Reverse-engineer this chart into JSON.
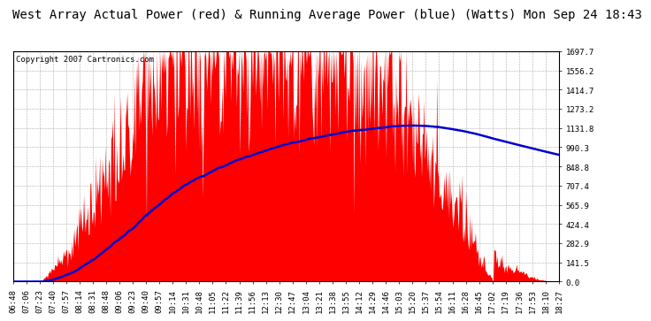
{
  "title": "West Array Actual Power (red) & Running Average Power (blue) (Watts) Mon Sep 24 18:43",
  "copyright": "Copyright 2007 Cartronics.com",
  "yticks": [
    0.0,
    141.5,
    282.9,
    424.4,
    565.9,
    707.4,
    848.8,
    990.3,
    1131.8,
    1273.2,
    1414.7,
    1556.2,
    1697.7
  ],
  "ymax": 1697.7,
  "ymin": 0.0,
  "xtick_labels": [
    "06:48",
    "07:06",
    "07:23",
    "07:40",
    "07:57",
    "08:14",
    "08:31",
    "08:48",
    "09:06",
    "09:23",
    "09:40",
    "09:57",
    "10:14",
    "10:31",
    "10:48",
    "11:05",
    "11:22",
    "11:39",
    "11:56",
    "12:13",
    "12:30",
    "12:47",
    "13:04",
    "13:21",
    "13:38",
    "13:55",
    "14:12",
    "14:29",
    "14:46",
    "15:03",
    "15:20",
    "15:37",
    "15:54",
    "16:11",
    "16:28",
    "16:45",
    "17:02",
    "17:19",
    "17:36",
    "17:53",
    "18:10",
    "18:27"
  ],
  "background_color": "#ffffff",
  "plot_bg_color": "#ffffff",
  "grid_color": "#999999",
  "actual_color": "#ff0000",
  "avg_color": "#0000cc",
  "title_fontsize": 10,
  "copyright_fontsize": 6.5,
  "tick_fontsize": 6.5
}
